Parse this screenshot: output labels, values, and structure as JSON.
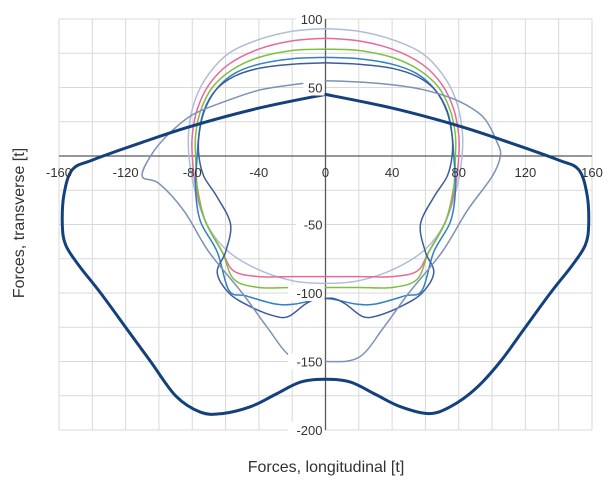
{
  "chart_data": {
    "type": "line",
    "title": "",
    "xlabel": "Forces, longitudinal [t]",
    "ylabel": "Forces, transverse [t]",
    "xlim": [
      -160,
      160
    ],
    "ylim": [
      -200,
      100
    ],
    "x_major_ticks": [
      -160,
      -120,
      -80,
      -40,
      0,
      40,
      80,
      120,
      160
    ],
    "y_major_ticks": [
      100,
      50,
      -50,
      -100,
      -150,
      -200
    ],
    "x_tick_labels": [
      "-160",
      "-120",
      "-80",
      "-40",
      "0",
      "40",
      "80",
      "120",
      "160"
    ],
    "y_tick_labels": [
      "100",
      "50",
      "-50",
      "-100",
      "-150",
      "-200"
    ],
    "grid": true,
    "legend": "none",
    "axes_through_origin": true,
    "series": [
      {
        "color": "#B0BCD8",
        "stroke": 1.5,
        "points": [
          [
            0,
            93
          ],
          [
            20,
            91
          ],
          [
            40,
            85
          ],
          [
            58,
            75
          ],
          [
            70,
            60
          ],
          [
            78,
            42
          ],
          [
            82,
            20
          ],
          [
            82,
            0
          ],
          [
            79,
            -22
          ],
          [
            72,
            -48
          ],
          [
            60,
            -68
          ],
          [
            42,
            -82
          ],
          [
            20,
            -91
          ],
          [
            0,
            -93
          ],
          [
            -20,
            -91
          ],
          [
            -42,
            -82
          ],
          [
            -60,
            -68
          ],
          [
            -72,
            -48
          ],
          [
            -79,
            -22
          ],
          [
            -82,
            0
          ],
          [
            -82,
            20
          ],
          [
            -78,
            42
          ],
          [
            -70,
            60
          ],
          [
            -58,
            75
          ],
          [
            -40,
            85
          ],
          [
            -20,
            91
          ],
          [
            0,
            93
          ]
        ]
      },
      {
        "color": "#E8689A",
        "stroke": 1.5,
        "points": [
          [
            0,
            86
          ],
          [
            20,
            84
          ],
          [
            40,
            78
          ],
          [
            58,
            67
          ],
          [
            70,
            52
          ],
          [
            77,
            34
          ],
          [
            80,
            15
          ],
          [
            80,
            0
          ],
          [
            78,
            -22
          ],
          [
            72,
            -48
          ],
          [
            62,
            -70
          ],
          [
            55,
            -84
          ],
          [
            40,
            -88
          ],
          [
            20,
            -88
          ],
          [
            0,
            -88
          ],
          [
            -20,
            -88
          ],
          [
            -40,
            -88
          ],
          [
            -55,
            -84
          ],
          [
            -62,
            -70
          ],
          [
            -72,
            -48
          ],
          [
            -78,
            -22
          ],
          [
            -80,
            0
          ],
          [
            -80,
            15
          ],
          [
            -77,
            34
          ],
          [
            -70,
            52
          ],
          [
            -58,
            67
          ],
          [
            -40,
            78
          ],
          [
            -20,
            84
          ],
          [
            0,
            86
          ]
        ]
      },
      {
        "color": "#7CC042",
        "stroke": 1.5,
        "points": [
          [
            0,
            78
          ],
          [
            20,
            77
          ],
          [
            40,
            72
          ],
          [
            56,
            63
          ],
          [
            68,
            50
          ],
          [
            75,
            33
          ],
          [
            78,
            15
          ],
          [
            78,
            0
          ],
          [
            77,
            -22
          ],
          [
            72,
            -48
          ],
          [
            62,
            -70
          ],
          [
            55,
            -90
          ],
          [
            40,
            -96
          ],
          [
            20,
            -96
          ],
          [
            0,
            -96
          ],
          [
            -20,
            -96
          ],
          [
            -40,
            -96
          ],
          [
            -55,
            -90
          ],
          [
            -62,
            -70
          ],
          [
            -72,
            -48
          ],
          [
            -77,
            -22
          ],
          [
            -78,
            0
          ],
          [
            -78,
            15
          ],
          [
            -75,
            33
          ],
          [
            -68,
            50
          ],
          [
            -56,
            63
          ],
          [
            -40,
            72
          ],
          [
            -20,
            77
          ],
          [
            0,
            78
          ]
        ]
      },
      {
        "color": "#2E82C0",
        "stroke": 1.5,
        "points": [
          [
            0,
            72
          ],
          [
            20,
            71
          ],
          [
            40,
            67
          ],
          [
            55,
            60
          ],
          [
            66,
            48
          ],
          [
            73,
            32
          ],
          [
            76,
            15
          ],
          [
            77,
            0
          ],
          [
            78,
            -25
          ],
          [
            75,
            -48
          ],
          [
            65,
            -70
          ],
          [
            58,
            -98
          ],
          [
            48,
            -102
          ],
          [
            30,
            -108
          ],
          [
            18,
            -108
          ],
          [
            0,
            -104
          ],
          [
            -18,
            -108
          ],
          [
            -30,
            -108
          ],
          [
            -48,
            -102
          ],
          [
            -58,
            -98
          ],
          [
            -65,
            -70
          ],
          [
            -75,
            -48
          ],
          [
            -78,
            -25
          ],
          [
            -77,
            0
          ],
          [
            -76,
            15
          ],
          [
            -73,
            32
          ],
          [
            -66,
            48
          ],
          [
            -55,
            60
          ],
          [
            -40,
            67
          ],
          [
            -20,
            71
          ],
          [
            0,
            72
          ]
        ]
      },
      {
        "color": "#3D5C98",
        "stroke": 1.5,
        "points": [
          [
            0,
            68
          ],
          [
            20,
            67
          ],
          [
            40,
            64
          ],
          [
            55,
            58
          ],
          [
            66,
            48
          ],
          [
            73,
            33
          ],
          [
            76,
            15
          ],
          [
            76,
            0
          ],
          [
            73,
            -15
          ],
          [
            65,
            -30
          ],
          [
            57,
            -50
          ],
          [
            60,
            -70
          ],
          [
            65,
            -85
          ],
          [
            58,
            -100
          ],
          [
            45,
            -110
          ],
          [
            30,
            -117
          ],
          [
            22,
            -117
          ],
          [
            12,
            -108
          ],
          [
            5,
            -104
          ],
          [
            0,
            -104
          ],
          [
            -5,
            -104
          ],
          [
            -12,
            -108
          ],
          [
            -22,
            -117
          ],
          [
            -30,
            -117
          ],
          [
            -45,
            -110
          ],
          [
            -58,
            -100
          ],
          [
            -65,
            -85
          ],
          [
            -60,
            -70
          ],
          [
            -57,
            -50
          ],
          [
            -65,
            -30
          ],
          [
            -73,
            -15
          ],
          [
            -76,
            0
          ],
          [
            -76,
            15
          ],
          [
            -73,
            33
          ],
          [
            -66,
            48
          ],
          [
            -55,
            58
          ],
          [
            -40,
            64
          ],
          [
            -20,
            67
          ],
          [
            0,
            68
          ]
        ]
      },
      {
        "color": "#7C90B8",
        "stroke": 1.5,
        "points": [
          [
            0,
            55
          ],
          [
            20,
            54
          ],
          [
            40,
            52
          ],
          [
            60,
            48
          ],
          [
            80,
            40
          ],
          [
            95,
            28
          ],
          [
            103,
            10
          ],
          [
            105,
            0
          ],
          [
            100,
            -15
          ],
          [
            85,
            -40
          ],
          [
            70,
            -70
          ],
          [
            50,
            -100
          ],
          [
            35,
            -125
          ],
          [
            20,
            -147
          ],
          [
            0,
            -150
          ],
          [
            -20,
            -147
          ],
          [
            -35,
            -125
          ],
          [
            -50,
            -100
          ],
          [
            -70,
            -70
          ],
          [
            -85,
            -40
          ],
          [
            -100,
            -20
          ],
          [
            -110,
            -15
          ],
          [
            -105,
            0
          ],
          [
            -95,
            15
          ],
          [
            -80,
            30
          ],
          [
            -60,
            40
          ],
          [
            -40,
            48
          ],
          [
            -20,
            52
          ],
          [
            0,
            55
          ]
        ]
      },
      {
        "color": "#14417C",
        "stroke": 3,
        "points": [
          [
            0,
            45
          ],
          [
            40,
            35
          ],
          [
            80,
            22
          ],
          [
            110,
            10
          ],
          [
            140,
            -3
          ],
          [
            152,
            -10
          ],
          [
            157,
            -28
          ],
          [
            158,
            -50
          ],
          [
            156,
            -65
          ],
          [
            148,
            -80
          ],
          [
            135,
            -100
          ],
          [
            120,
            -125
          ],
          [
            105,
            -150
          ],
          [
            90,
            -170
          ],
          [
            75,
            -183
          ],
          [
            62,
            -188
          ],
          [
            45,
            -183
          ],
          [
            30,
            -174
          ],
          [
            15,
            -165
          ],
          [
            0,
            -163
          ],
          [
            -15,
            -165
          ],
          [
            -30,
            -174
          ],
          [
            -45,
            -183
          ],
          [
            -62,
            -188
          ],
          [
            -75,
            -187
          ],
          [
            -90,
            -175
          ],
          [
            -105,
            -150
          ],
          [
            -120,
            -125
          ],
          [
            -135,
            -100
          ],
          [
            -148,
            -80
          ],
          [
            -156,
            -65
          ],
          [
            -158,
            -50
          ],
          [
            -157,
            -28
          ],
          [
            -152,
            -10
          ],
          [
            -140,
            -3
          ],
          [
            -110,
            10
          ],
          [
            -80,
            22
          ],
          [
            -40,
            35
          ],
          [
            0,
            45
          ]
        ]
      }
    ]
  }
}
